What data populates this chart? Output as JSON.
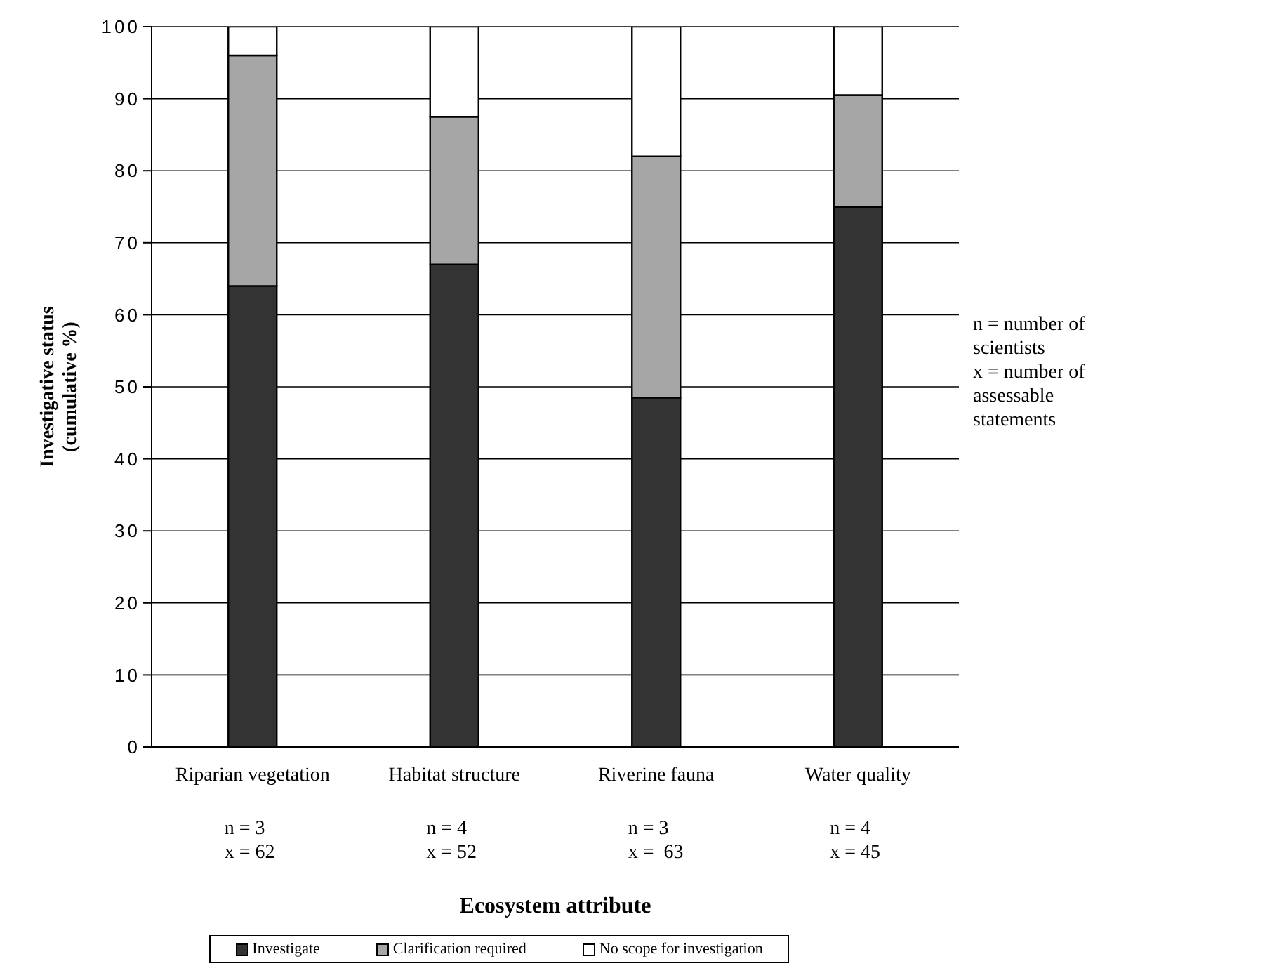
{
  "chart_data": {
    "type": "bar",
    "stacked": true,
    "xlabel": "Ecosystem attribute",
    "ylabel": "Investigative status\n(cumulative %)",
    "categories": [
      "Riparian vegetation",
      "Habitat structure",
      "Riverine fauna",
      "Water quality"
    ],
    "series": [
      {
        "name": "Investigate",
        "color": "#333333",
        "values": [
          64,
          67,
          48.5,
          75
        ]
      },
      {
        "name": "Clarification required",
        "color": "#a6a6a6",
        "values": [
          32,
          20.5,
          33.5,
          15.5
        ]
      },
      {
        "name": "No scope for investigation",
        "color": "#ffffff",
        "values": [
          4,
          12.5,
          18,
          9.5
        ]
      }
    ],
    "ylim": [
      0,
      100
    ],
    "yticks": [
      0,
      10,
      20,
      30,
      40,
      50,
      60,
      70,
      80,
      90,
      100
    ],
    "grid": "y",
    "legend": "bottom",
    "annotations": [
      "n = 3\nx = 62",
      "n = 4\nx = 52",
      "n = 3\nx =  63",
      "n = 4\nx = 45",
      "n = number of scientists\nx = number of assessable statements"
    ]
  }
}
